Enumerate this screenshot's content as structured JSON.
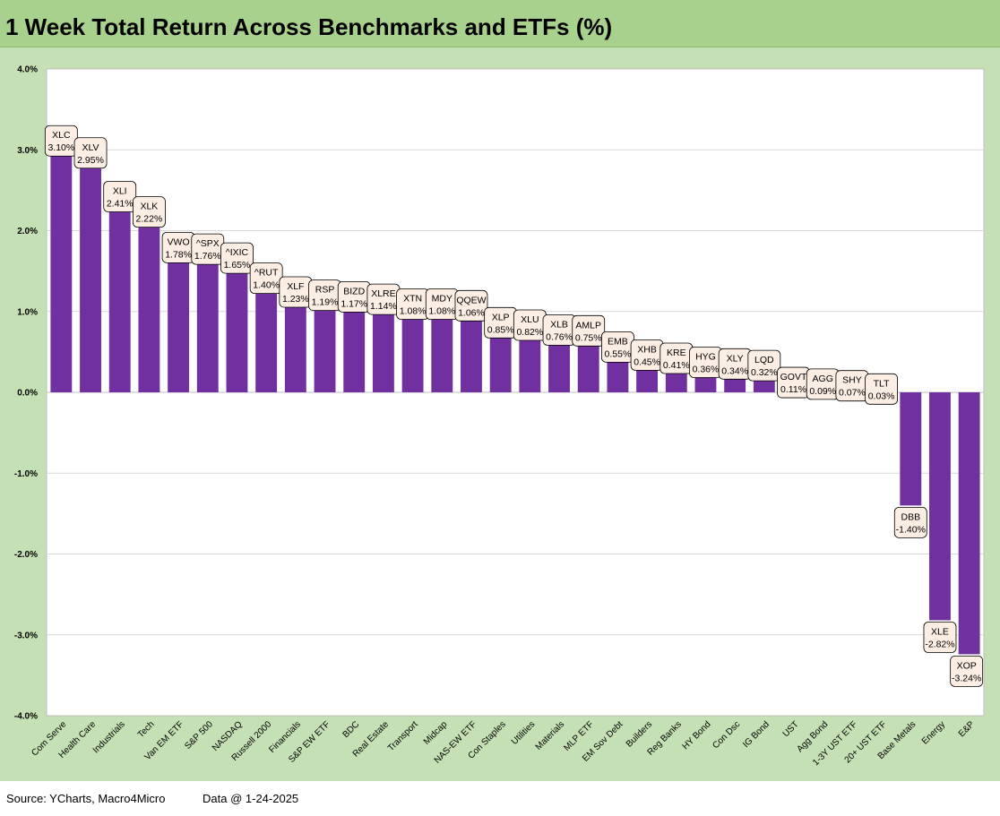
{
  "header": {
    "title": "1 Week Total Return Across Benchmarks and ETFs (%)"
  },
  "footer": {
    "source": "Source: YCharts, Macro4Micro",
    "date": "Data @ 1-24-2025"
  },
  "colors": {
    "bar": "#7030a0",
    "title_band": "#a9d18e",
    "frame": "#c5e0b4",
    "plot_bg": "#ffffff",
    "label_fill": "#fdeee4"
  },
  "chart_data": {
    "type": "bar",
    "title": "1 Week Total Return Across Benchmarks and ETFs (%)",
    "xlabel": "",
    "ylabel": "",
    "ylim": [
      -4.0,
      4.0
    ],
    "yticks": [
      4.0,
      3.0,
      2.0,
      1.0,
      0.0,
      -1.0,
      -2.0,
      -3.0,
      -4.0
    ],
    "ytick_labels": [
      "4.0%",
      "3.0%",
      "2.0%",
      "1.0%",
      "0.0%",
      "-1.0%",
      "-2.0%",
      "-3.0%",
      "-4.0%"
    ],
    "grid": true,
    "legend": "none",
    "categories": [
      "Com Serve",
      "Health Care",
      "Industrials",
      "Tech",
      "Van EM ETF",
      "S&P 500",
      "NASDAQ",
      "Russell 2000",
      "Financials",
      "S&P EW ETF",
      "BDC",
      "Real Estate",
      "Transport",
      "Midcap",
      "NAS-EW ETF",
      "Con Staples",
      "Utilities",
      "Materials",
      "MLP ETF",
      "EM Sov Debt",
      "Builders",
      "Reg Banks",
      "HY Bond",
      "Con Dsc",
      "IG Bond",
      "UST",
      "Agg Bond",
      "1-3Y UST ETF",
      "20+ UST ETF",
      "Base Metals",
      "Energy",
      "E&P"
    ],
    "tickers": [
      "XLC",
      "XLV",
      "XLI",
      "XLK",
      "VWO",
      "^SPX",
      "^IXIC",
      "^RUT",
      "XLF",
      "RSP",
      "BIZD",
      "XLRE",
      "XTN",
      "MDY",
      "QQEW",
      "XLP",
      "XLU",
      "XLB",
      "AMLP",
      "EMB",
      "XHB",
      "KRE",
      "HYG",
      "XLY",
      "LQD",
      "GOVT",
      "AGG",
      "SHY",
      "TLT",
      "DBB",
      "XLE",
      "XOP"
    ],
    "values": [
      3.1,
      2.95,
      2.41,
      2.22,
      1.78,
      1.76,
      1.65,
      1.4,
      1.23,
      1.19,
      1.17,
      1.14,
      1.08,
      1.08,
      1.06,
      0.85,
      0.82,
      0.76,
      0.75,
      0.55,
      0.45,
      0.41,
      0.36,
      0.34,
      0.32,
      0.11,
      0.09,
      0.07,
      0.03,
      -1.4,
      -2.82,
      -3.24
    ],
    "value_labels": [
      "3.10%",
      "2.95%",
      "2.41%",
      "2.22%",
      "1.78%",
      "1.76%",
      "1.65%",
      "1.40%",
      "1.23%",
      "1.19%",
      "1.17%",
      "1.14%",
      "1.08%",
      "1.08%",
      "1.06%",
      "0.85%",
      "0.82%",
      "0.76%",
      "0.75%",
      "0.55%",
      "0.45%",
      "0.41%",
      "0.36%",
      "0.34%",
      "0.32%",
      "0.11%",
      "0.09%",
      "0.07%",
      "0.03%",
      "-1.40%",
      "-2.82%",
      "-3.24%"
    ]
  }
}
